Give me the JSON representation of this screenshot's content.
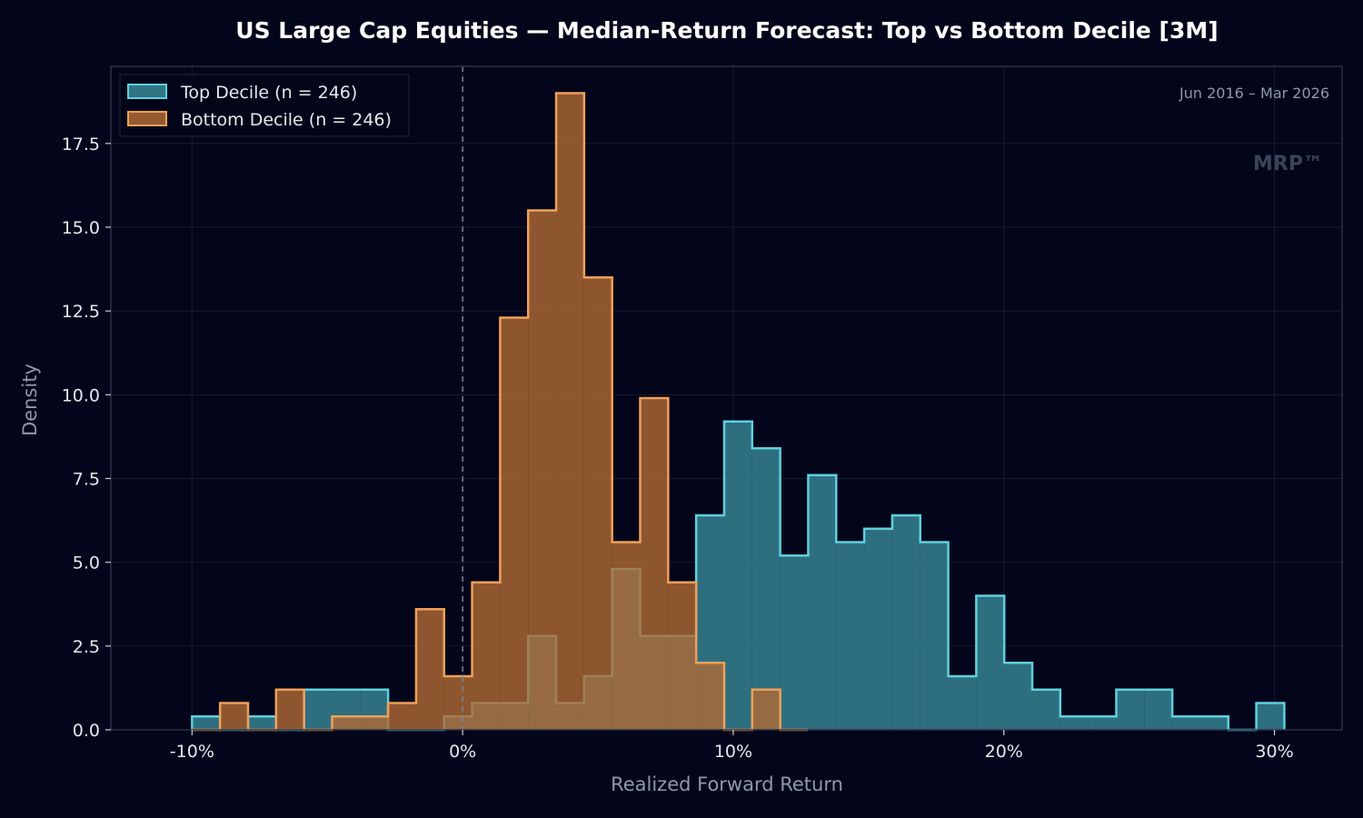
{
  "chart_data": {
    "type": "histogram",
    "title": "US Large Cap Equities  —  Median-Return Forecast: Top vs Bottom Decile  [3M]",
    "xlabel": "Realized Forward Return",
    "ylabel": "Density",
    "xlim": [
      -0.13,
      0.325
    ],
    "ylim": [
      0,
      19.8
    ],
    "x_ticks": [
      -0.1,
      0.0,
      0.1,
      0.2,
      0.3
    ],
    "x_tick_labels": [
      "-10%",
      "0%",
      "10%",
      "20%",
      "30%"
    ],
    "y_ticks": [
      0,
      2.5,
      5.0,
      7.5,
      10.0,
      12.5,
      15.0,
      17.5
    ],
    "y_tick_labels": [
      "0.0",
      "2.5",
      "5.0",
      "7.5",
      "10.0",
      "12.5",
      "15.0",
      "17.5"
    ],
    "grid": true,
    "zero_reference_line": 0.0,
    "legend_position": "top-left",
    "date_range": "Jun 2016 – Mar 2026",
    "watermark": "MRP™",
    "bins": {
      "start": -0.1,
      "width": 0.01035,
      "count": 39
    },
    "series": [
      {
        "name": "Top Decile  (n = 246)",
        "color": "#5fd0e0",
        "fill": "#3a8a99",
        "densities": [
          0.4,
          0,
          0.4,
          0,
          1.2,
          1.2,
          1.2,
          0,
          0,
          0.4,
          0.8,
          0.8,
          2.8,
          0.8,
          1.6,
          4.8,
          2.8,
          2.8,
          6.4,
          9.2,
          8.4,
          5.2,
          7.6,
          5.6,
          6.0,
          6.4,
          5.6,
          1.6,
          4.0,
          2.0,
          1.2,
          0.4,
          0.4,
          1.2,
          1.2,
          0.4,
          0.4,
          0,
          0.8
        ]
      },
      {
        "name": "Bottom Decile  (n = 246)",
        "color": "#f0a05a",
        "fill": "#b06a35",
        "densities": [
          0,
          0.8,
          0,
          1.2,
          0,
          0.4,
          0.4,
          0.8,
          3.6,
          1.6,
          4.4,
          12.3,
          15.5,
          19.0,
          13.5,
          5.6,
          9.9,
          4.4,
          2.0,
          0,
          1.2,
          0
        ]
      }
    ]
  }
}
